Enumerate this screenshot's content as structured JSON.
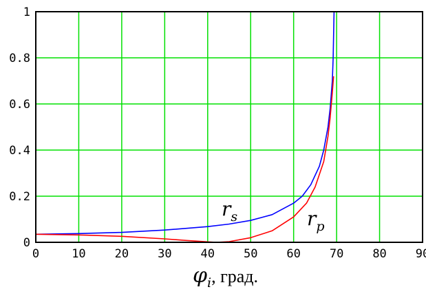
{
  "chart_data": {
    "type": "line",
    "title": "",
    "xlabel": {
      "symbol": "φ",
      "subscript": "i",
      "rest": ", град."
    },
    "ylabel": "",
    "xlim": [
      0,
      90
    ],
    "ylim": [
      0,
      1
    ],
    "x_ticks": [
      0,
      10,
      20,
      30,
      40,
      50,
      60,
      70,
      80,
      90
    ],
    "x_tick_labels": [
      "0",
      "10",
      "20",
      "30",
      "40",
      "50",
      "60",
      "70",
      "80",
      "90"
    ],
    "y_ticks": [
      0,
      0.2,
      0.4,
      0.6,
      0.8,
      1
    ],
    "y_tick_labels": [
      "0",
      "0.2",
      "0.4",
      "0.6",
      "0.8",
      "1"
    ],
    "grid": true,
    "colors": {
      "grid": "#00e000",
      "rs": "#0000ff",
      "rp": "#ff0000",
      "frame": "#000000"
    },
    "series": [
      {
        "name": "r_s",
        "label": {
          "main": "r",
          "sub": "s"
        },
        "x": [
          0,
          10,
          20,
          30,
          40,
          45,
          50,
          55,
          60,
          62,
          64,
          66,
          67,
          68,
          68.5,
          69,
          69.2,
          69.4,
          70,
          80,
          90
        ],
        "y": [
          0.035,
          0.038,
          0.043,
          0.053,
          0.068,
          0.079,
          0.095,
          0.12,
          0.17,
          0.2,
          0.25,
          0.33,
          0.4,
          0.5,
          0.58,
          0.7,
          0.8,
          1,
          1,
          1,
          1
        ]
      },
      {
        "name": "r_p",
        "label": {
          "main": "r",
          "sub": "p"
        },
        "x": [
          0,
          10,
          20,
          30,
          35,
          40,
          42,
          45,
          50,
          55,
          60,
          63,
          65,
          67,
          68,
          68.5,
          69,
          69.3
        ],
        "y": [
          0.035,
          0.032,
          0.026,
          0.015,
          0.008,
          0.002,
          0.0,
          0.003,
          0.02,
          0.05,
          0.11,
          0.17,
          0.24,
          0.35,
          0.46,
          0.54,
          0.65,
          0.72
        ]
      }
    ]
  }
}
